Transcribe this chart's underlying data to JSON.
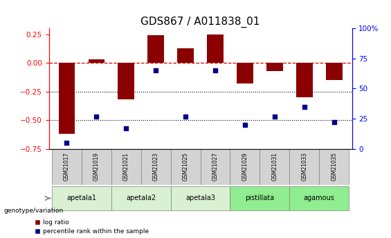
{
  "title": "GDS867 / A011838_01",
  "samples": [
    "GSM21017",
    "GSM21019",
    "GSM21021",
    "GSM21023",
    "GSM21025",
    "GSM21027",
    "GSM21029",
    "GSM21031",
    "GSM21033",
    "GSM21035"
  ],
  "log_ratio": [
    -0.62,
    0.03,
    -0.32,
    0.245,
    0.13,
    0.25,
    -0.18,
    -0.07,
    -0.3,
    -0.15
  ],
  "percentile_rank": [
    5,
    27,
    17,
    65,
    27,
    65,
    20,
    27,
    35,
    22
  ],
  "groups": [
    {
      "label": "apetala1",
      "indices": [
        0,
        1
      ],
      "color": "#d9f0d3"
    },
    {
      "label": "apetala2",
      "indices": [
        2,
        3
      ],
      "color": "#d9f0d3"
    },
    {
      "label": "apetala3",
      "indices": [
        4,
        5
      ],
      "color": "#d9f0d3"
    },
    {
      "label": "pistillata",
      "indices": [
        6,
        7
      ],
      "color": "#90ee90"
    },
    {
      "label": "agamous",
      "indices": [
        8,
        9
      ],
      "color": "#90ee90"
    }
  ],
  "ylim_left": [
    -0.75,
    0.3
  ],
  "ylim_right": [
    0,
    100
  ],
  "bar_color": "#8b0000",
  "dot_color": "#00008b",
  "dashed_line_color": "#cc0000",
  "dot_line_color_25": "#000000",
  "dot_line_color_50": "#000000",
  "title_fontsize": 11,
  "tick_fontsize": 7.5,
  "label_fontsize": 8
}
